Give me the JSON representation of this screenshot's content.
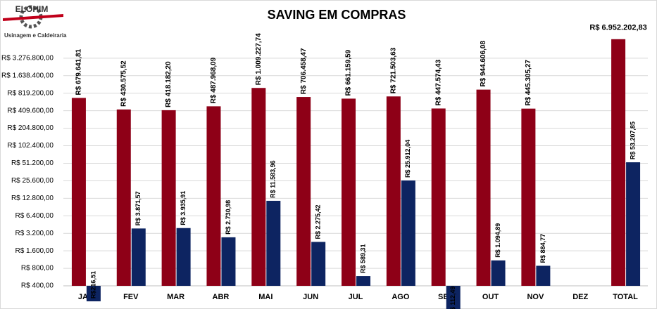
{
  "logo": {
    "title": "ELOHIM",
    "subtitle": "Usinagem e Caldeiraria"
  },
  "chart_data": {
    "type": "bar",
    "title": "SAVING EM COMPRAS",
    "categories": [
      "JAN",
      "FEV",
      "MAR",
      "ABR",
      "MAI",
      "JUN",
      "JUL",
      "AGO",
      "SET",
      "OUT",
      "NOV",
      "DEZ",
      "TOTAL"
    ],
    "series": [
      {
        "color": "#8e0017",
        "values": [
          679641.81,
          430575.52,
          418182.2,
          487968.09,
          1009227.74,
          706458.47,
          661159.59,
          721503.63,
          447574.43,
          944606.08,
          445305.27,
          null,
          6952202.83
        ],
        "value_labels": [
          "R$ 679.641,81",
          "R$ 430.575,52",
          "R$ 418.182,20",
          "R$ 487.968,09",
          "R$ 1.009.227,74",
          "R$ 706.458,47",
          "R$ 661.159,59",
          "R$ 721.503,63",
          "R$ 447.574,43",
          "R$ 944.606,08",
          "R$ 445.305,27",
          null,
          "R$ 6.952.202,83"
        ]
      },
      {
        "color": "#0d2461",
        "values": [
          216.51,
          3871.57,
          3935.91,
          2730.98,
          11583.96,
          2275.42,
          589.31,
          25912.04,
          112.49,
          1094.89,
          884.77,
          null,
          53207.85
        ],
        "value_labels": [
          "R$216,51",
          "R$ 3.871,57",
          "R$ 3.935,91",
          "R$ 2.730,98",
          "R$ 11.583,96",
          "R$ 2.275,42",
          "R$ 589,31",
          "R$ 25.912,04",
          "R$ 112,49",
          "R$ 1.094,89",
          "R$ 884,77",
          null,
          "R$ 53.207,85"
        ]
      }
    ],
    "log_scale": true,
    "ylim": [
      400,
      13107200
    ],
    "yticks": [
      {
        "value": 400,
        "label": "R$ 400,00"
      },
      {
        "value": 800,
        "label": "R$ 800,00"
      },
      {
        "value": 1600,
        "label": "R$ 1.600,00"
      },
      {
        "value": 3200,
        "label": "R$ 3.200,00"
      },
      {
        "value": 6400,
        "label": "R$ 6.400,00"
      },
      {
        "value": 12800,
        "label": "R$ 12.800,00"
      },
      {
        "value": 25600,
        "label": "R$ 25.600,00"
      },
      {
        "value": 51200,
        "label": "R$ 51.200,00"
      },
      {
        "value": 102400,
        "label": "R$ 102.400,00"
      },
      {
        "value": 204800,
        "label": "R$ 204.800,00"
      },
      {
        "value": 409600,
        "label": "R$ 409.600,00"
      },
      {
        "value": 819200,
        "label": "R$ 819.200,00"
      },
      {
        "value": 1638400,
        "label": "R$ 1.638.400,00"
      },
      {
        "value": 3276800,
        "label": "R$ 3.276.800,00"
      }
    ],
    "grid": true
  }
}
